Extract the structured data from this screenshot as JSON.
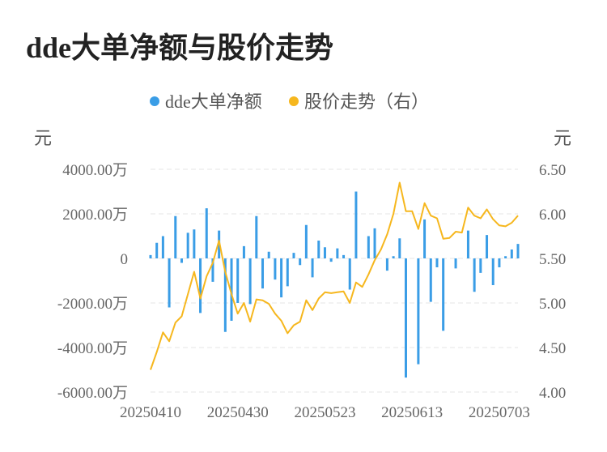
{
  "chart_data": {
    "type": "bar+line",
    "title": "dde大单净额与股价走势",
    "left_unit": "元",
    "right_unit": "元",
    "legend": [
      {
        "name": "dde大单净额",
        "color": "#3a9de6"
      },
      {
        "name": "股价走势（右）",
        "color": "#f6b71e"
      }
    ],
    "left_axis": {
      "min": -6000,
      "max": 4000,
      "ticks": [
        {
          "value": 4000,
          "label": "4000.00万"
        },
        {
          "value": 2000,
          "label": "2000.00万"
        },
        {
          "value": 0,
          "label": "0"
        },
        {
          "value": -2000,
          "label": "-2000.00万"
        },
        {
          "value": -4000,
          "label": "-4000.00万"
        },
        {
          "value": -6000,
          "label": "-6000.00万"
        }
      ]
    },
    "right_axis": {
      "min": 4.0,
      "max": 6.5,
      "ticks": [
        {
          "value": 6.5,
          "label": "6.50"
        },
        {
          "value": 6.0,
          "label": "6.00"
        },
        {
          "value": 5.5,
          "label": "5.50"
        },
        {
          "value": 5.0,
          "label": "5.00"
        },
        {
          "value": 4.5,
          "label": "4.50"
        },
        {
          "value": 4.0,
          "label": "4.00"
        }
      ]
    },
    "x_tick_labels": [
      {
        "index": 0,
        "label": "20250410"
      },
      {
        "index": 14,
        "label": "20250430"
      },
      {
        "index": 28,
        "label": "20250523"
      },
      {
        "index": 42,
        "label": "20250613"
      },
      {
        "index": 56,
        "label": "20250703"
      }
    ],
    "grid": true,
    "legend_position": "top-center",
    "series": [
      {
        "name": "dde大单净额",
        "type": "bar",
        "unit": "万元",
        "values": [
          150,
          700,
          1000,
          -2200,
          1900,
          -200,
          1150,
          1300,
          -2450,
          2250,
          -1050,
          1250,
          -3300,
          -2800,
          -2000,
          550,
          -2050,
          1900,
          -1350,
          300,
          -950,
          -1750,
          -1250,
          250,
          -300,
          1500,
          -850,
          800,
          500,
          -150,
          450,
          150,
          -1400,
          3000,
          0,
          1000,
          1350,
          0,
          -550,
          100,
          900,
          -5350,
          0,
          -4750,
          1750,
          -1950,
          -400,
          -3250,
          0,
          -450,
          0,
          1250,
          -1500,
          -650,
          1050,
          -1200,
          -400,
          100,
          400,
          650
        ]
      },
      {
        "name": "股价走势（右）",
        "type": "line",
        "unit": "元",
        "values": [
          4.25,
          4.45,
          4.67,
          4.57,
          4.78,
          4.85,
          5.1,
          5.35,
          5.05,
          5.3,
          5.45,
          5.7,
          5.35,
          5.1,
          4.88,
          5.0,
          4.79,
          5.04,
          5.03,
          4.99,
          4.88,
          4.8,
          4.66,
          4.75,
          4.79,
          5.03,
          4.92,
          5.05,
          5.12,
          5.11,
          5.12,
          5.13,
          5.0,
          5.23,
          5.18,
          5.32,
          5.48,
          5.6,
          5.77,
          6.0,
          6.35,
          6.03,
          6.03,
          5.83,
          6.12,
          5.98,
          5.95,
          5.72,
          5.73,
          5.8,
          5.79,
          6.07,
          5.98,
          5.95,
          6.05,
          5.94,
          5.87,
          5.86,
          5.9,
          5.98
        ]
      }
    ]
  }
}
